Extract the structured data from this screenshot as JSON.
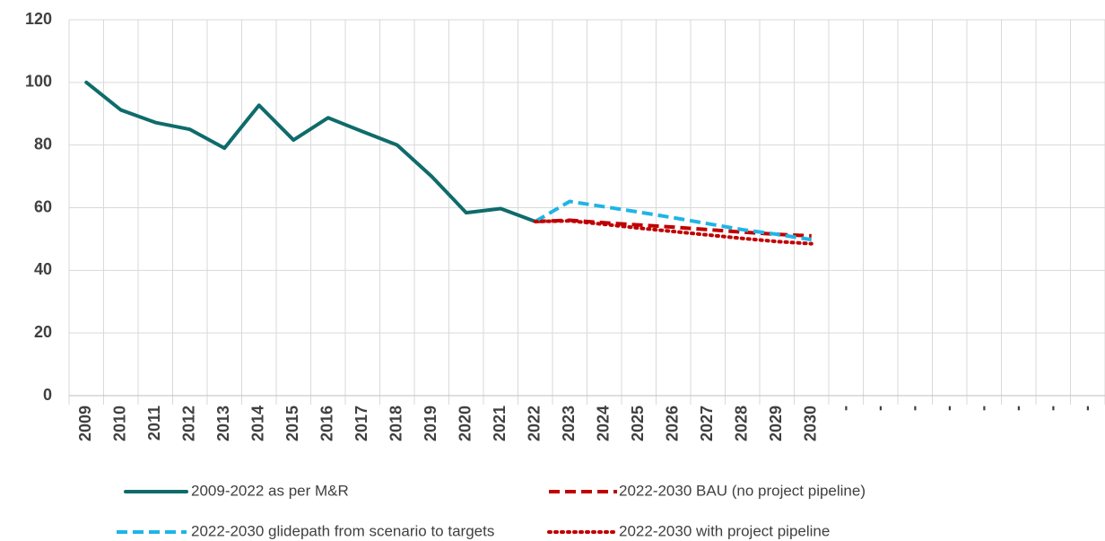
{
  "chart_data": {
    "type": "line",
    "categories": [
      "2009",
      "2010",
      "2011",
      "2012",
      "2013",
      "2014",
      "2015",
      "2016",
      "2017",
      "2018",
      "2019",
      "2020",
      "2021",
      "2022",
      "2023",
      "2024",
      "2025",
      "2026",
      "2027",
      "2028",
      "2029",
      "2030",
      "-",
      "-",
      "-",
      "-",
      "-",
      "-",
      "-",
      "-"
    ],
    "series": [
      {
        "name": "2009-2022 as per M&R",
        "color": "#0f6b6b",
        "dash": "solid",
        "values": [
          100,
          91.2,
          87.2,
          85,
          79,
          92.7,
          81.6,
          88.7,
          84.3,
          80,
          70,
          58.4,
          59.7,
          55.6,
          null,
          null,
          null,
          null,
          null,
          null,
          null,
          null,
          null,
          null,
          null,
          null,
          null,
          null,
          null,
          null
        ]
      },
      {
        "name": "2022-2030 BAU (no project pipeline)",
        "color": "#c00000",
        "dash": "dash",
        "values": [
          null,
          null,
          null,
          null,
          null,
          null,
          null,
          null,
          null,
          null,
          null,
          null,
          null,
          55.6,
          56,
          55.2,
          54.5,
          53.8,
          53,
          52.2,
          51.5,
          51,
          null,
          null,
          null,
          null,
          null,
          null,
          null,
          null
        ]
      },
      {
        "name": "2022-2030 glidepath from scenario to targets",
        "color": "#1fb4e6",
        "dash": "dash",
        "values": [
          null,
          null,
          null,
          null,
          null,
          null,
          null,
          null,
          null,
          null,
          null,
          null,
          null,
          55.6,
          62,
          60.3,
          58.6,
          56.8,
          54.9,
          53,
          51.5,
          49.8,
          null,
          null,
          null,
          null,
          null,
          null,
          null,
          null
        ]
      },
      {
        "name": "2022-2030 with project pipeline",
        "color": "#c00000",
        "dash": "dot",
        "values": [
          null,
          null,
          null,
          null,
          null,
          null,
          null,
          null,
          null,
          null,
          null,
          null,
          null,
          55.6,
          55.8,
          54.7,
          53.5,
          52.4,
          51.3,
          50.2,
          49.2,
          48.5,
          null,
          null,
          null,
          null,
          null,
          null,
          null,
          null
        ]
      }
    ],
    "ylim": [
      0,
      120
    ],
    "yticks": [
      0,
      20,
      40,
      60,
      80,
      100,
      120
    ],
    "grid": true
  }
}
